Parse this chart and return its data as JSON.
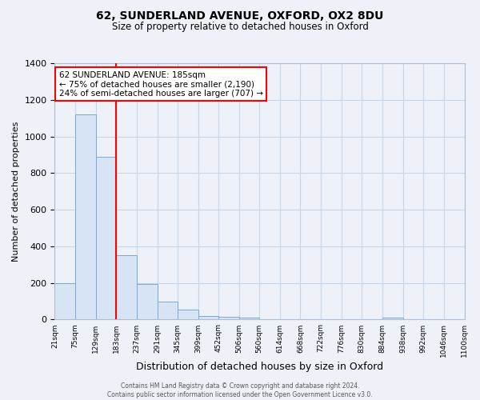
{
  "title": "62, SUNDERLAND AVENUE, OXFORD, OX2 8DU",
  "subtitle": "Size of property relative to detached houses in Oxford",
  "xlabel": "Distribution of detached houses by size in Oxford",
  "ylabel": "Number of detached properties",
  "bar_values": [
    200,
    1120,
    890,
    350,
    195,
    100,
    55,
    20,
    15,
    10,
    0,
    0,
    0,
    0,
    0,
    0,
    10,
    0,
    0,
    0
  ],
  "bin_edges": [
    21,
    75,
    129,
    183,
    237,
    291,
    345,
    399,
    452,
    506,
    560,
    614,
    668,
    722,
    776,
    830,
    884,
    938,
    992,
    1046,
    1100
  ],
  "tick_labels": [
    "21sqm",
    "75sqm",
    "129sqm",
    "183sqm",
    "237sqm",
    "291sqm",
    "345sqm",
    "399sqm",
    "452sqm",
    "506sqm",
    "560sqm",
    "614sqm",
    "668sqm",
    "722sqm",
    "776sqm",
    "830sqm",
    "884sqm",
    "938sqm",
    "992sqm",
    "1046sqm",
    "1100sqm"
  ],
  "bar_color": "#d6e4f5",
  "bar_edge_color": "#7aa8d4",
  "grid_color": "#c8d4e8",
  "background_color": "#eef2f8",
  "property_line_x": 183,
  "ylim": [
    0,
    1400
  ],
  "yticks": [
    0,
    200,
    400,
    600,
    800,
    1000,
    1200,
    1400
  ],
  "annotation_title": "62 SUNDERLAND AVENUE: 185sqm",
  "annotation_line1": "← 75% of detached houses are smaller (2,190)",
  "annotation_line2": "24% of semi-detached houses are larger (707) →",
  "footer_line1": "Contains HM Land Registry data © Crown copyright and database right 2024.",
  "footer_line2": "Contains public sector information licensed under the Open Government Licence v3.0."
}
